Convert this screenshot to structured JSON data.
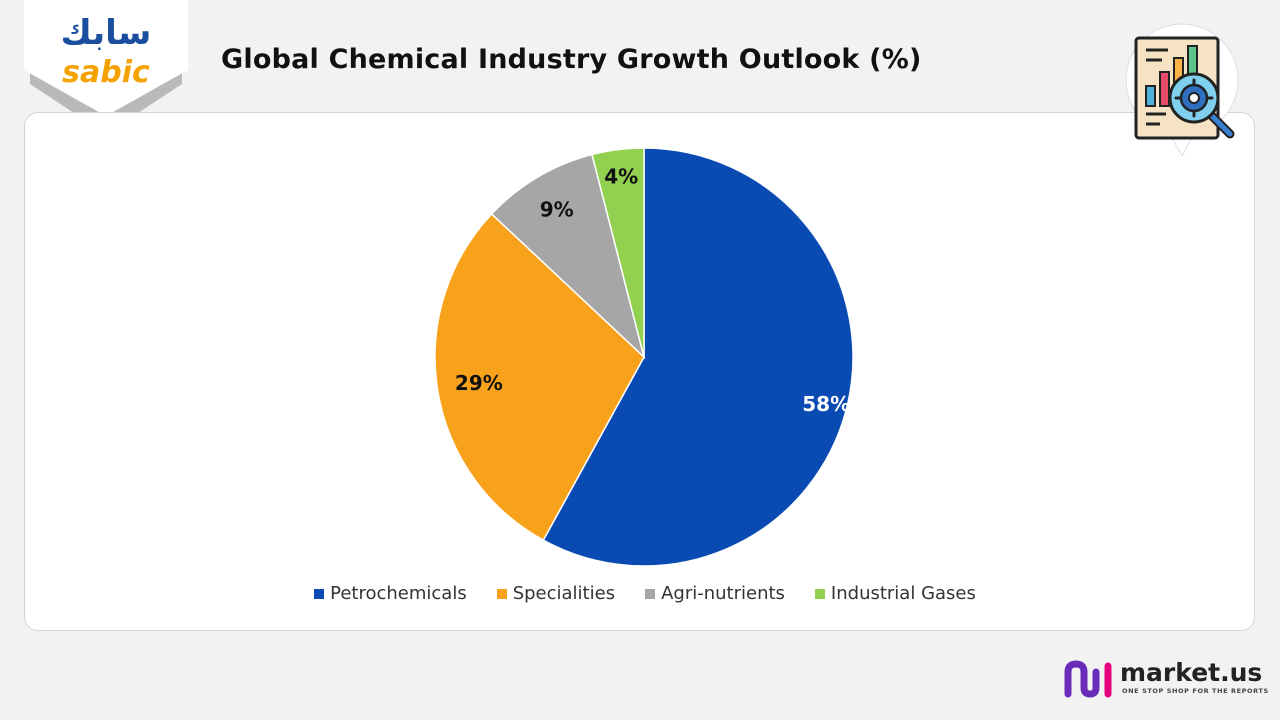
{
  "brand": {
    "arabic_name": "سابك",
    "latin_name": "sabic",
    "primary_color": "#1a4fa0",
    "accent_color": "#f5a200"
  },
  "chart_data": {
    "type": "pie",
    "title": "Global Chemical Industry Growth Outlook  (%)",
    "categories": [
      "Petrochemicals",
      "Specialities",
      "Agri-nutrients",
      "Industrial Gases"
    ],
    "values": [
      58,
      29,
      9,
      4
    ],
    "data_labels": [
      "58%",
      "29%",
      "9%",
      "4%"
    ],
    "colors": [
      "#0a4bb3",
      "#f8a21b",
      "#a6a6a6",
      "#92d050"
    ],
    "label_colors": [
      "#ffffff",
      "#111111",
      "#111111",
      "#111111"
    ],
    "legend_position": "bottom",
    "start": "top",
    "direction": "clockwise"
  },
  "footer": {
    "brand": "market.us",
    "tagline": "ONE STOP SHOP FOR THE REPORTS"
  }
}
